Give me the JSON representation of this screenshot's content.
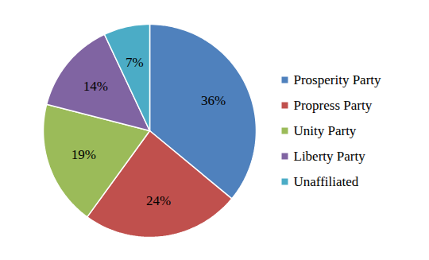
{
  "chart_data": {
    "type": "pie",
    "categories": [
      "Prosperity Party",
      "Propress Party",
      "Unity Party",
      "Liberty Party",
      "Unaffiliated"
    ],
    "values": [
      36,
      24,
      19,
      14,
      7
    ],
    "value_labels": [
      "36%",
      "24%",
      "19%",
      "14%",
      "7%"
    ],
    "colors": [
      "#4f81bd",
      "#c0504d",
      "#9bbb59",
      "#8064a2",
      "#4bacc6"
    ],
    "data_labels": true,
    "legend": "right"
  }
}
